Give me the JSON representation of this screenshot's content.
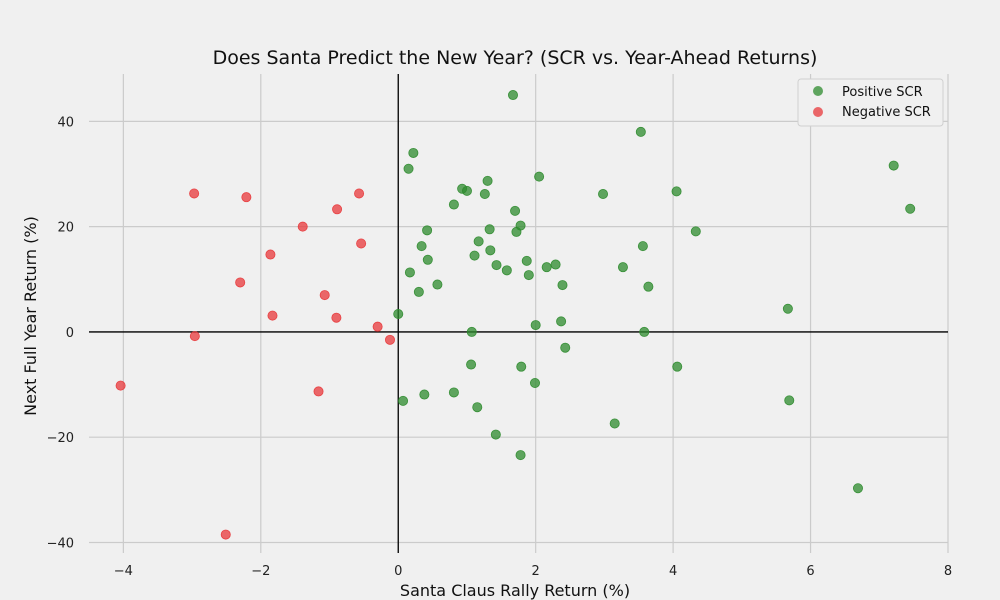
{
  "chart_data": {
    "type": "scatter",
    "title": "Does Santa Predict the New Year? (SCR vs. Year-Ahead Returns)",
    "xlabel": "Santa Claus Rally Return (%)",
    "ylabel": "Next Full Year Return (%)",
    "xlim": [
      -4.5,
      8
    ],
    "ylim": [
      -42,
      49
    ],
    "xticks": [
      -4,
      -2,
      0,
      2,
      4,
      6,
      8
    ],
    "yticks": [
      -40,
      -20,
      0,
      20,
      40
    ],
    "grid": true,
    "zero_lines": true,
    "legend_position": "top-right",
    "series": [
      {
        "name": "Positive SCR",
        "color": "#2e8b2e",
        "points": [
          [
            1.67,
            45.0
          ],
          [
            3.53,
            38.0
          ],
          [
            0.22,
            34.0
          ],
          [
            0.15,
            31.0
          ],
          [
            1.3,
            28.7
          ],
          [
            0.93,
            27.2
          ],
          [
            1.0,
            26.8
          ],
          [
            1.26,
            26.2
          ],
          [
            2.05,
            29.5
          ],
          [
            2.98,
            26.2
          ],
          [
            4.05,
            26.7
          ],
          [
            7.21,
            31.6
          ],
          [
            7.45,
            23.4
          ],
          [
            0.81,
            24.2
          ],
          [
            1.7,
            23.0
          ],
          [
            1.78,
            20.2
          ],
          [
            1.72,
            19.0
          ],
          [
            1.33,
            19.5
          ],
          [
            0.42,
            19.3
          ],
          [
            4.33,
            19.1
          ],
          [
            1.17,
            17.2
          ],
          [
            0.34,
            16.3
          ],
          [
            3.56,
            16.3
          ],
          [
            1.34,
            15.5
          ],
          [
            1.11,
            14.5
          ],
          [
            0.43,
            13.7
          ],
          [
            1.87,
            13.5
          ],
          [
            2.29,
            12.8
          ],
          [
            1.43,
            12.7
          ],
          [
            2.16,
            12.3
          ],
          [
            3.27,
            12.3
          ],
          [
            1.58,
            11.7
          ],
          [
            0.17,
            11.3
          ],
          [
            1.9,
            10.8
          ],
          [
            2.39,
            8.9
          ],
          [
            0.57,
            9.0
          ],
          [
            3.64,
            8.6
          ],
          [
            0.3,
            7.6
          ],
          [
            5.67,
            4.4
          ],
          [
            0.0,
            3.4
          ],
          [
            2.0,
            1.3
          ],
          [
            2.37,
            2.0
          ],
          [
            1.07,
            0.0
          ],
          [
            3.58,
            0.0
          ],
          [
            2.43,
            -3.0
          ],
          [
            1.06,
            -6.2
          ],
          [
            1.79,
            -6.6
          ],
          [
            4.06,
            -6.6
          ],
          [
            1.99,
            -9.7
          ],
          [
            0.81,
            -11.5
          ],
          [
            0.38,
            -11.9
          ],
          [
            0.07,
            -13.1
          ],
          [
            5.69,
            -13.0
          ],
          [
            1.15,
            -14.3
          ],
          [
            3.15,
            -17.4
          ],
          [
            1.42,
            -19.5
          ],
          [
            1.78,
            -23.4
          ],
          [
            6.69,
            -29.7
          ]
        ]
      },
      {
        "name": "Negative SCR",
        "color": "#e8383b",
        "points": [
          [
            -2.97,
            26.3
          ],
          [
            -0.57,
            26.3
          ],
          [
            -2.21,
            25.6
          ],
          [
            -0.89,
            23.3
          ],
          [
            -1.39,
            20.0
          ],
          [
            -0.54,
            16.8
          ],
          [
            -1.86,
            14.7
          ],
          [
            -2.3,
            9.4
          ],
          [
            -1.07,
            7.0
          ],
          [
            -1.83,
            3.1
          ],
          [
            -0.9,
            2.7
          ],
          [
            -0.3,
            1.0
          ],
          [
            -0.12,
            -1.5
          ],
          [
            -2.96,
            -0.8
          ],
          [
            -1.16,
            -11.3
          ],
          [
            -4.04,
            -10.2
          ],
          [
            -2.51,
            -38.5
          ]
        ]
      }
    ]
  }
}
